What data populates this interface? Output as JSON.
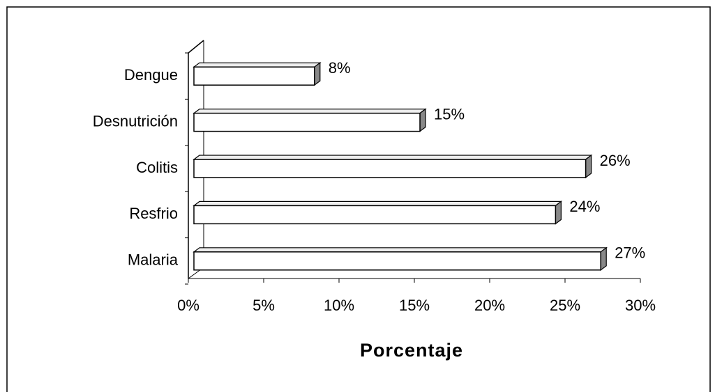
{
  "chart_data": {
    "type": "bar",
    "orientation": "horizontal",
    "categories": [
      "Dengue",
      "Desnutrición",
      "Colitis",
      "Resfrio",
      "Malaria"
    ],
    "values": [
      8,
      15,
      26,
      24,
      27
    ],
    "value_labels": [
      "8%",
      "15%",
      "26%",
      "24%",
      "27%"
    ],
    "color": "#ffffff",
    "xlim": [
      0,
      30
    ],
    "xticks": [
      {
        "value": 0,
        "label": "0%"
      },
      {
        "value": 5,
        "label": "5%"
      },
      {
        "value": 10,
        "label": "10%"
      },
      {
        "value": 15,
        "label": "15%"
      },
      {
        "value": 20,
        "label": "20%"
      },
      {
        "value": 25,
        "label": "25%"
      },
      {
        "value": 30,
        "label": "30%"
      }
    ],
    "xlabel": "Porcentaje"
  }
}
